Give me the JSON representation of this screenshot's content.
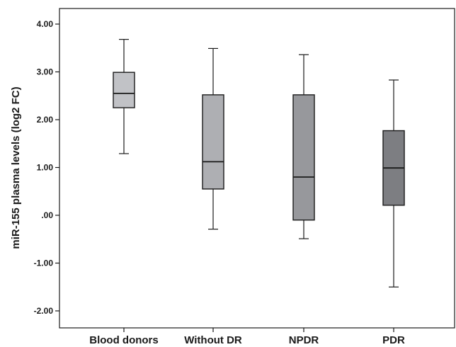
{
  "chart_data": {
    "type": "boxplot",
    "title": "",
    "xlabel": "",
    "ylabel": "miR-155 plasma levels (log2 FC)",
    "ylim": [
      -2.4,
      4.4
    ],
    "yticks": [
      4,
      3,
      2,
      1,
      0,
      -1,
      -2
    ],
    "ytick_labels": [
      "4.00",
      "3.00",
      "2.00",
      "1.00",
      ".00",
      "-1.00",
      "-2.00"
    ],
    "grid": false,
    "categories": [
      "Blood donors",
      "Without DR",
      "NPDR",
      "PDR"
    ],
    "boxes": [
      {
        "category": "Blood donors",
        "whisker_low": 1.29,
        "q1": 2.25,
        "median": 2.55,
        "q3": 2.99,
        "whisker_high": 3.68,
        "fill": "#c1c2c6"
      },
      {
        "category": "Without DR",
        "whisker_low": -0.29,
        "q1": 0.55,
        "median": 1.12,
        "q3": 2.52,
        "whisker_high": 3.49,
        "fill": "#aeafb3"
      },
      {
        "category": "NPDR",
        "whisker_low": -0.49,
        "q1": -0.1,
        "median": 0.8,
        "q3": 2.52,
        "whisker_high": 3.36,
        "fill": "#97989c"
      },
      {
        "category": "PDR",
        "whisker_low": -1.5,
        "q1": 0.21,
        "median": 0.99,
        "q3": 1.77,
        "whisker_high": 2.83,
        "fill": "#7d7e82"
      }
    ]
  }
}
